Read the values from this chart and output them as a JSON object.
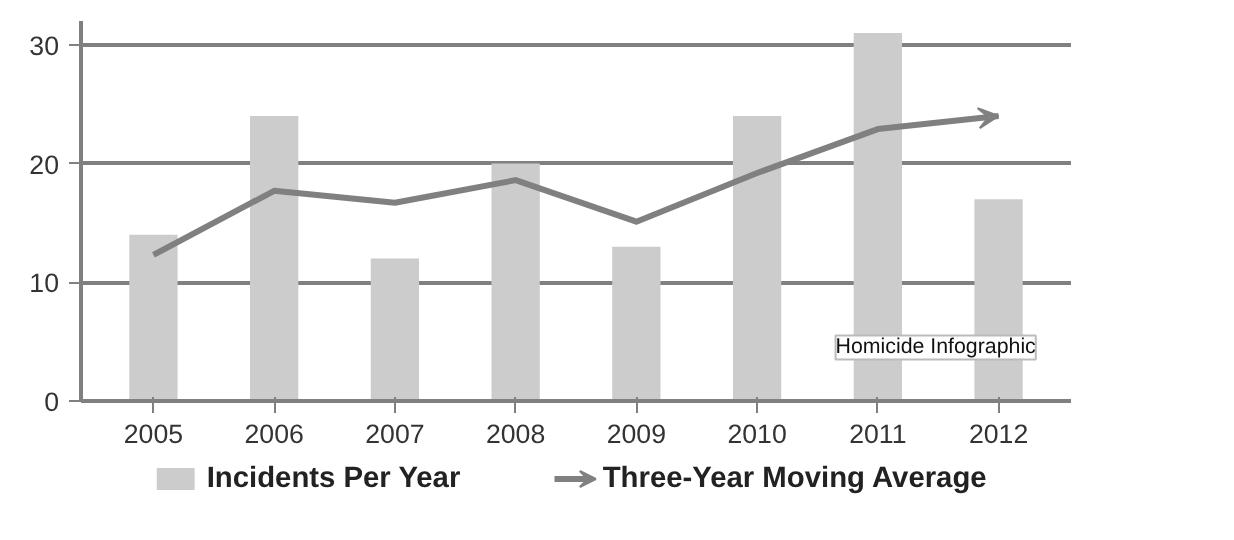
{
  "chart_data": {
    "type": "bar",
    "categories": [
      "2005",
      "2006",
      "2007",
      "2008",
      "2009",
      "2010",
      "2011",
      "2012"
    ],
    "series": [
      {
        "name": "Incidents Per Year",
        "color": "#cccccc",
        "values": [
          14,
          24,
          12,
          20,
          13,
          24,
          31,
          17
        ]
      },
      {
        "name": "Three-Year Moving Average",
        "type": "line",
        "color": "#808080",
        "values": [
          12.3,
          17.7,
          16.7,
          18.6,
          15.1,
          19.2,
          22.9,
          24.0
        ]
      }
    ],
    "ylim": [
      0,
      32
    ],
    "yticks": [
      0,
      10,
      20,
      30
    ],
    "grid": "y",
    "legend": "bottom",
    "line_style": "solid",
    "marker": "none",
    "annotations": [
      "Homicide Infographic"
    ]
  }
}
